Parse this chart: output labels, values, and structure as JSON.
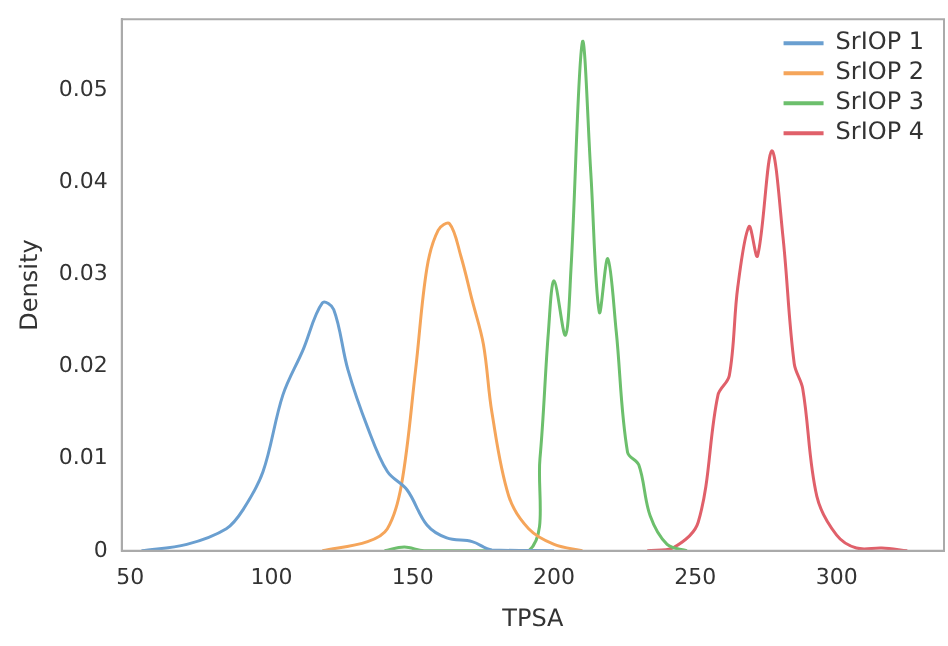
{
  "chart_data": {
    "type": "line",
    "xlabel": "TPSA",
    "ylabel": "Density",
    "xlim": [
      47,
      338
    ],
    "xticks": [
      50,
      100,
      150,
      200,
      250,
      300
    ],
    "ylim": [
      0,
      0.0577
    ],
    "yticks": [
      0,
      0.01,
      0.02,
      0.03,
      0.04,
      0.05
    ],
    "grid": false,
    "legend": "top right",
    "marker": "none",
    "line_style": "solid",
    "series": [
      {
        "name": "SrIOP 1",
        "color": "#6a9fd0",
        "x": [
          54,
          70,
          84,
          90,
          97,
          104,
          111,
          118,
          122,
          127,
          134,
          141,
          148,
          155,
          162,
          171,
          178,
          200
        ],
        "values": [
          0,
          0.0007,
          0.0024,
          0.0045,
          0.0086,
          0.0169,
          0.0217,
          0.0269,
          0.0262,
          0.0197,
          0.0134,
          0.0086,
          0.0066,
          0.0028,
          0.0014,
          0.001,
          0.0001,
          0
        ]
      },
      {
        "name": "SrIOP 2",
        "color": "#f5a55a",
        "x": [
          118,
          134,
          141,
          146,
          151,
          155,
          159,
          163,
          167,
          171,
          175,
          178,
          184,
          191,
          200,
          210
        ],
        "values": [
          0,
          0.001,
          0.0024,
          0.0072,
          0.0197,
          0.0307,
          0.0348,
          0.0355,
          0.032,
          0.0272,
          0.0224,
          0.015,
          0.0059,
          0.0024,
          0.0007,
          0
        ]
      },
      {
        "name": "SrIOP 3",
        "color": "#6cbf6c",
        "x": [
          140,
          147,
          154,
          191,
          195,
          198,
          200,
          204,
          206,
          210,
          213,
          216,
          219,
          222,
          226,
          230,
          234,
          240,
          247
        ],
        "values": [
          0,
          0.0004,
          0,
          0,
          0.01,
          0.0238,
          0.0293,
          0.0234,
          0.0307,
          0.0552,
          0.041,
          0.0259,
          0.0317,
          0.0238,
          0.0107,
          0.0093,
          0.0038,
          0.0007,
          0
        ]
      },
      {
        "name": "SrIOP 4",
        "color": "#e0606a",
        "x": [
          233,
          242,
          251,
          258,
          262,
          265,
          269,
          272,
          277,
          281,
          285,
          288,
          293,
          300,
          307,
          316,
          325
        ],
        "values": [
          0,
          0.0003,
          0.0031,
          0.0169,
          0.019,
          0.0286,
          0.0352,
          0.032,
          0.0434,
          0.0341,
          0.0203,
          0.0176,
          0.0059,
          0.0017,
          0.0003,
          0.0003,
          0
        ]
      }
    ]
  }
}
